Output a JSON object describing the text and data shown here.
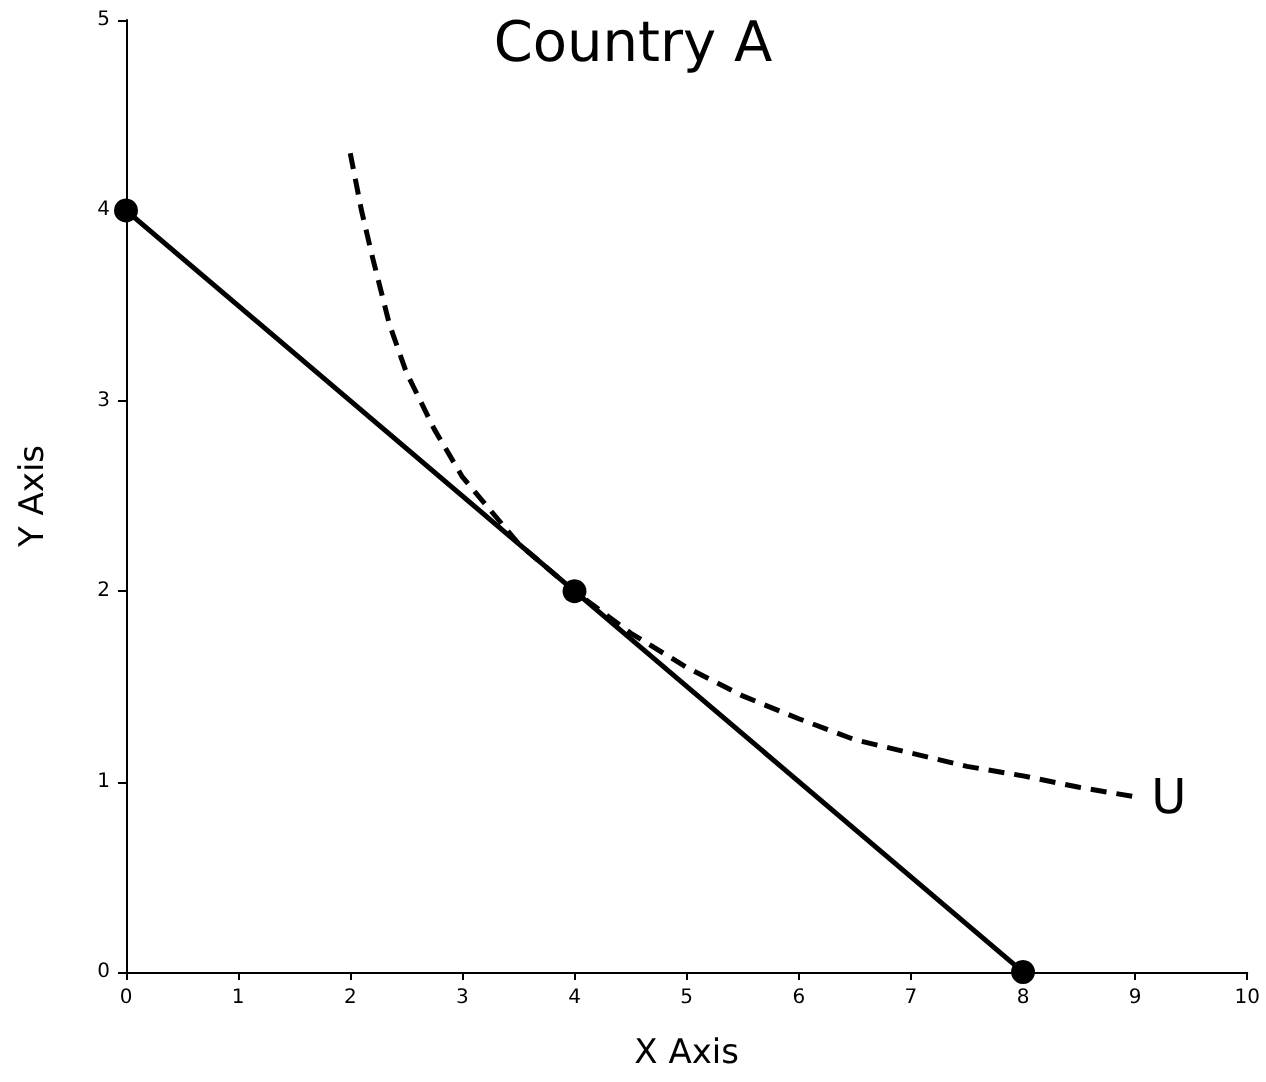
{
  "chart_data": {
    "type": "line",
    "title": "Country A",
    "xlabel": "X Axis",
    "ylabel": "Y Axis",
    "xlim": [
      0,
      10
    ],
    "xticks": [
      0,
      1,
      2,
      3,
      4,
      5,
      6,
      7,
      8,
      9,
      10
    ],
    "ylim": [
      0,
      5
    ],
    "yticks": [
      0,
      1,
      2,
      3,
      4,
      5
    ],
    "grid": false,
    "legend": false,
    "series": [
      {
        "x": [
          0,
          4,
          8
        ],
        "values": [
          4,
          2,
          0
        ],
        "color": "#000000",
        "marker": "circle",
        "line_style": "solid"
      },
      {
        "name": "U",
        "x": [
          2,
          2.1,
          2.2,
          2.35,
          2.5,
          2.75,
          3,
          3.5,
          4,
          4.5,
          5,
          5.5,
          6,
          6.5,
          7,
          7.5,
          8,
          8.5,
          9
        ],
        "values": [
          4.3,
          4.0,
          3.75,
          3.4,
          3.15,
          2.85,
          2.6,
          2.25,
          2,
          1.78,
          1.6,
          1.45,
          1.33,
          1.22,
          1.15,
          1.08,
          1.03,
          0.97,
          0.92
        ],
        "color": "#000000",
        "marker": "none",
        "line_style": "dashed"
      }
    ]
  }
}
